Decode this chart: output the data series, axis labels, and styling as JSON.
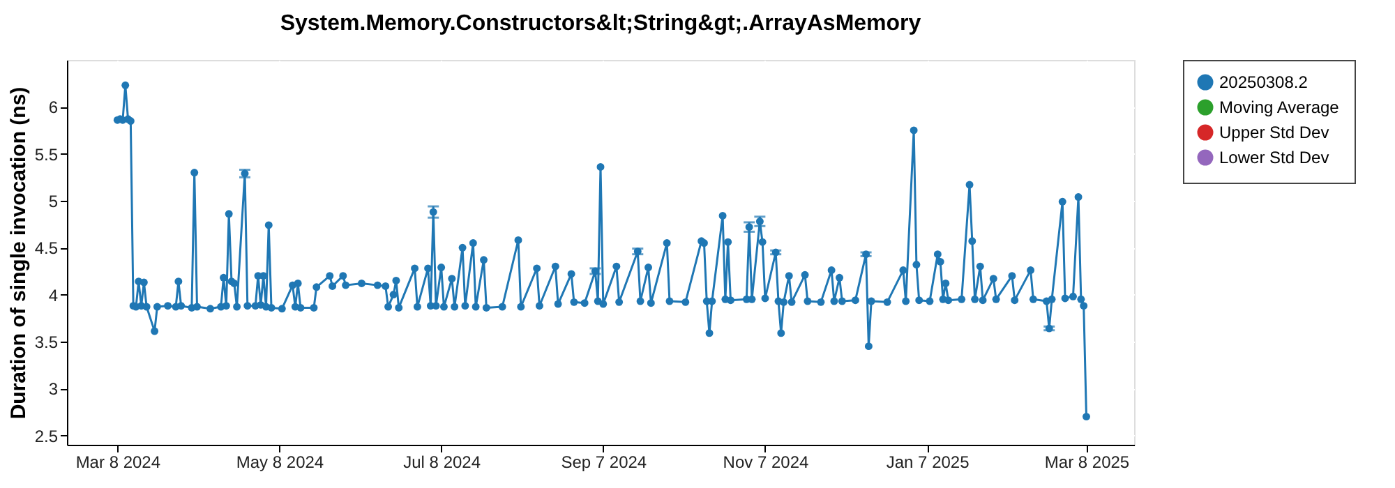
{
  "chart_data": {
    "type": "line",
    "title": "System.Memory.Constructors&lt;String&gt;.ArrayAsMemory",
    "ylabel": "Duration of single invocation (ns)",
    "xlim": [
      "2024-02-18",
      "2025-03-26"
    ],
    "xticks": [
      {
        "value": "2024-03-08",
        "label": "Mar 8 2024"
      },
      {
        "value": "2024-05-08",
        "label": "May 8 2024"
      },
      {
        "value": "2024-07-08",
        "label": "Jul 8 2024"
      },
      {
        "value": "2024-09-07",
        "label": "Sep 7 2024"
      },
      {
        "value": "2024-11-07",
        "label": "Nov 7 2024"
      },
      {
        "value": "2025-01-07",
        "label": "Jan 7 2025"
      },
      {
        "value": "2025-03-08",
        "label": "Mar 8 2025"
      }
    ],
    "ylim": [
      2.4,
      6.5
    ],
    "yticks": [
      2.5,
      3,
      3.5,
      4,
      4.5,
      5,
      5.5,
      6
    ],
    "grid": true,
    "legend": "right",
    "marker": "circle",
    "line_style": "solid",
    "series": [
      {
        "name": "20250308.2",
        "color": "#1f77b4",
        "x": [
          "2024-03-08",
          "2024-03-09",
          "2024-03-10",
          "2024-03-11",
          "2024-03-12",
          "2024-03-13",
          "2024-03-14",
          "2024-03-15",
          "2024-03-16",
          "2024-03-17",
          "2024-03-18",
          "2024-03-19",
          "2024-03-22",
          "2024-03-23",
          "2024-03-27",
          "2024-03-30",
          "2024-03-31",
          "2024-04-01",
          "2024-04-05",
          "2024-04-06",
          "2024-04-07",
          "2024-04-12",
          "2024-04-16",
          "2024-04-17",
          "2024-04-18",
          "2024-04-19",
          "2024-04-20",
          "2024-04-21",
          "2024-04-22",
          "2024-04-25",
          "2024-04-26",
          "2024-04-29",
          "2024-04-30",
          "2024-05-01",
          "2024-05-02",
          "2024-05-03",
          "2024-05-04",
          "2024-05-05",
          "2024-05-09",
          "2024-05-13",
          "2024-05-14",
          "2024-05-15",
          "2024-05-16",
          "2024-05-21",
          "2024-05-22",
          "2024-05-27",
          "2024-05-28",
          "2024-06-01",
          "2024-06-02",
          "2024-06-08",
          "2024-06-14",
          "2024-06-17",
          "2024-06-18",
          "2024-06-20",
          "2024-06-21",
          "2024-06-22",
          "2024-06-28",
          "2024-06-29",
          "2024-07-03",
          "2024-07-04",
          "2024-07-05",
          "2024-07-06",
          "2024-07-08",
          "2024-07-09",
          "2024-07-12",
          "2024-07-13",
          "2024-07-16",
          "2024-07-17",
          "2024-07-20",
          "2024-07-21",
          "2024-07-24",
          "2024-07-25",
          "2024-07-31",
          "2024-08-06",
          "2024-08-07",
          "2024-08-13",
          "2024-08-14",
          "2024-08-20",
          "2024-08-21",
          "2024-08-26",
          "2024-08-27",
          "2024-08-31",
          "2024-09-04",
          "2024-09-05",
          "2024-09-06",
          "2024-09-07",
          "2024-09-12",
          "2024-09-13",
          "2024-09-20",
          "2024-09-21",
          "2024-09-24",
          "2024-09-25",
          "2024-10-01",
          "2024-10-02",
          "2024-10-08",
          "2024-10-14",
          "2024-10-15",
          "2024-10-16",
          "2024-10-17",
          "2024-10-18",
          "2024-10-22",
          "2024-10-23",
          "2024-10-24",
          "2024-10-25",
          "2024-10-31",
          "2024-11-01",
          "2024-11-02",
          "2024-11-05",
          "2024-11-06",
          "2024-11-07",
          "2024-11-11",
          "2024-11-12",
          "2024-11-13",
          "2024-11-14",
          "2024-11-16",
          "2024-11-17",
          "2024-11-22",
          "2024-11-23",
          "2024-11-28",
          "2024-12-02",
          "2024-12-03",
          "2024-12-05",
          "2024-12-06",
          "2024-12-11",
          "2024-12-15",
          "2024-12-16",
          "2024-12-17",
          "2024-12-23",
          "2024-12-29",
          "2024-12-30",
          "2025-01-02",
          "2025-01-03",
          "2025-01-04",
          "2025-01-08",
          "2025-01-11",
          "2025-01-12",
          "2025-01-13",
          "2025-01-14",
          "2025-01-15",
          "2025-01-20",
          "2025-01-23",
          "2025-01-24",
          "2025-01-25",
          "2025-01-27",
          "2025-01-28",
          "2025-02-01",
          "2025-02-02",
          "2025-02-08",
          "2025-02-09",
          "2025-02-15",
          "2025-02-16",
          "2025-02-21",
          "2025-02-22",
          "2025-02-23",
          "2025-02-27",
          "2025-02-28",
          "2025-03-03",
          "2025-03-05",
          "2025-03-06",
          "2025-03-07",
          "2025-03-08"
        ],
        "values": [
          5.86,
          5.87,
          5.86,
          6.23,
          5.87,
          5.85,
          3.88,
          3.87,
          4.14,
          3.88,
          4.13,
          3.87,
          3.61,
          3.87,
          3.88,
          3.87,
          4.14,
          3.88,
          3.86,
          5.3,
          3.87,
          3.85,
          3.87,
          4.18,
          3.88,
          4.86,
          4.14,
          4.12,
          3.87,
          5.29,
          3.88,
          3.88,
          4.2,
          3.89,
          4.2,
          3.87,
          4.74,
          3.86,
          3.85,
          4.1,
          3.87,
          4.12,
          3.86,
          3.86,
          4.08,
          4.2,
          4.09,
          4.2,
          4.1,
          4.12,
          4.1,
          4.09,
          3.87,
          4.0,
          4.15,
          3.86,
          4.28,
          3.87,
          4.28,
          3.88,
          4.88,
          3.88,
          4.29,
          3.87,
          4.17,
          3.87,
          4.5,
          3.88,
          4.55,
          3.87,
          4.37,
          3.86,
          3.87,
          4.58,
          3.87,
          4.28,
          3.88,
          4.3,
          3.9,
          4.22,
          3.92,
          3.91,
          4.25,
          3.93,
          5.36,
          3.9,
          4.3,
          3.92,
          4.46,
          3.93,
          4.29,
          3.91,
          4.55,
          3.93,
          3.92,
          4.57,
          4.55,
          3.93,
          3.59,
          3.93,
          4.84,
          3.95,
          4.56,
          3.94,
          3.95,
          4.72,
          3.95,
          4.78,
          4.56,
          3.96,
          4.45,
          3.93,
          3.59,
          3.92,
          4.2,
          3.92,
          4.21,
          3.93,
          3.92,
          4.26,
          3.93,
          4.18,
          3.93,
          3.94,
          4.43,
          3.45,
          3.93,
          3.92,
          4.26,
          3.93,
          5.75,
          4.32,
          3.94,
          3.93,
          4.43,
          4.35,
          3.95,
          4.12,
          3.94,
          3.95,
          5.17,
          4.57,
          3.95,
          4.3,
          3.94,
          4.17,
          3.95,
          4.2,
          3.94,
          4.26,
          3.95,
          3.93,
          3.64,
          3.95,
          4.99,
          3.96,
          3.98,
          5.04,
          3.95,
          3.88,
          2.7
        ],
        "errors": [
          null,
          null,
          null,
          null,
          null,
          null,
          null,
          null,
          null,
          null,
          null,
          null,
          null,
          null,
          null,
          null,
          null,
          null,
          null,
          null,
          null,
          null,
          null,
          null,
          null,
          null,
          null,
          null,
          null,
          0.04,
          null,
          null,
          null,
          null,
          null,
          null,
          null,
          null,
          null,
          null,
          null,
          null,
          null,
          null,
          null,
          null,
          null,
          null,
          null,
          null,
          null,
          null,
          null,
          null,
          null,
          null,
          null,
          null,
          null,
          null,
          0.06,
          null,
          null,
          null,
          null,
          null,
          null,
          null,
          null,
          null,
          null,
          null,
          null,
          null,
          null,
          null,
          null,
          null,
          null,
          null,
          null,
          null,
          0.03,
          null,
          null,
          null,
          null,
          null,
          0.03,
          null,
          null,
          null,
          null,
          null,
          null,
          null,
          null,
          null,
          null,
          null,
          null,
          null,
          null,
          null,
          null,
          0.05,
          null,
          0.05,
          null,
          null,
          0.02,
          null,
          null,
          null,
          null,
          null,
          null,
          null,
          null,
          null,
          null,
          null,
          null,
          null,
          0.02,
          null,
          null,
          null,
          null,
          null,
          null,
          null,
          null,
          null,
          null,
          null,
          null,
          null,
          null,
          null,
          null,
          null,
          null,
          null,
          null,
          null,
          null,
          null,
          null,
          null,
          null,
          null,
          0.02,
          null,
          null,
          null,
          null,
          null,
          null,
          null,
          null
        ]
      },
      {
        "name": "Moving Average",
        "color": "#2ca02c"
      },
      {
        "name": "Upper Std Dev",
        "color": "#d62728"
      },
      {
        "name": "Lower Std Dev",
        "color": "#9467bd"
      }
    ]
  }
}
